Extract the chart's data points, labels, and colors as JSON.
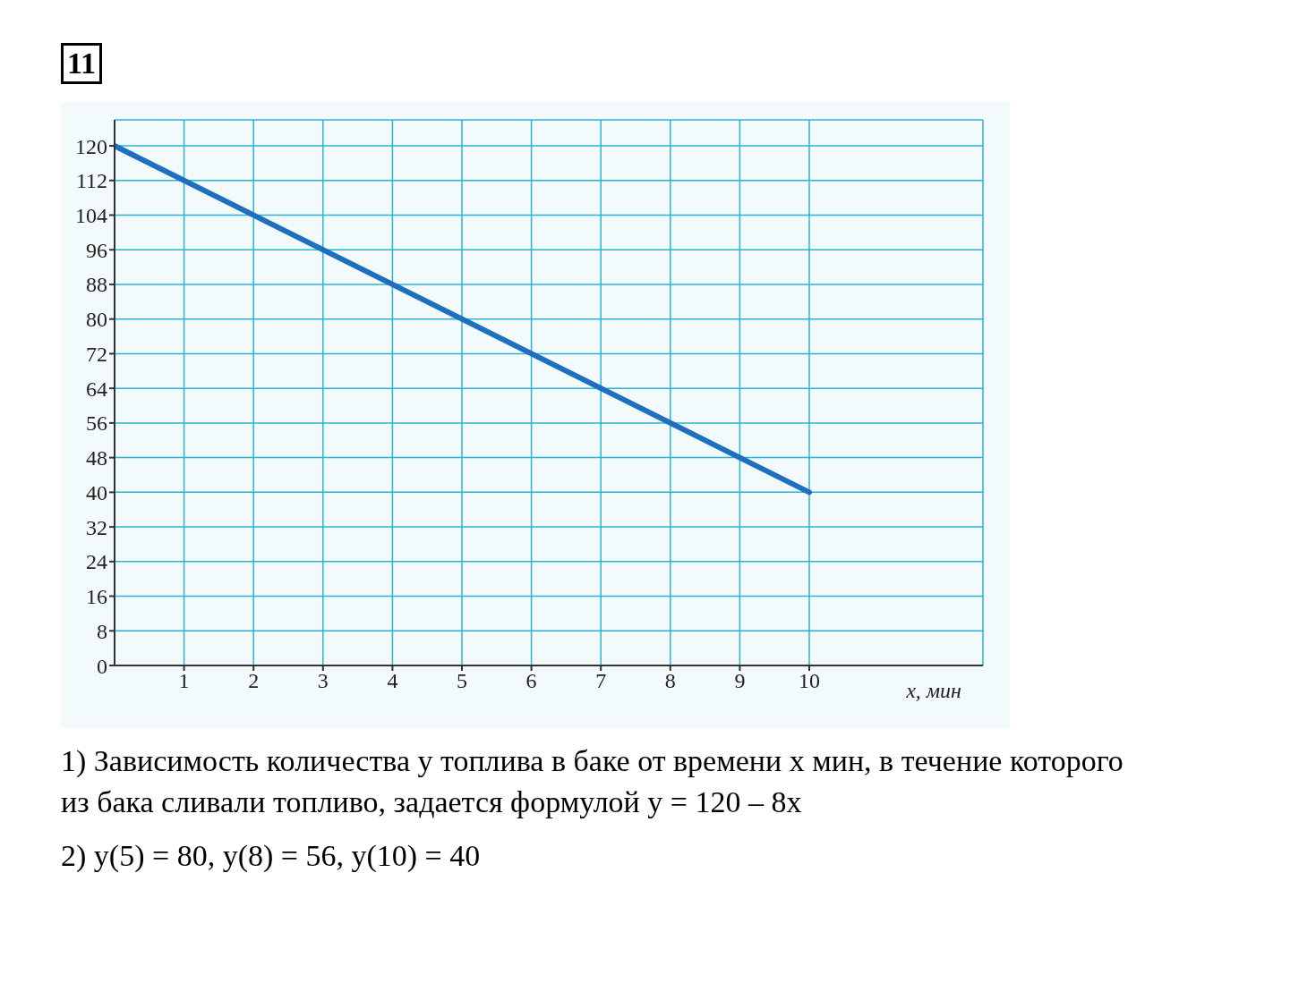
{
  "chart_data": {
    "type": "line",
    "xlabel": "x, мин",
    "x": [
      0,
      10
    ],
    "series": [
      {
        "color": "#1f6fbf",
        "values": [
          120,
          40
        ]
      }
    ],
    "xlim": [
      0,
      12.5
    ],
    "xticks": [
      1,
      2,
      3,
      4,
      5,
      6,
      7,
      8,
      9,
      10
    ],
    "ylim": [
      0,
      126
    ],
    "yticks": [
      0,
      8,
      16,
      24,
      32,
      40,
      48,
      56,
      64,
      72,
      80,
      88,
      96,
      104,
      112,
      120
    ],
    "grid": true,
    "marker": "none",
    "line_style": "solid",
    "annotations": [
      "11",
      "1) Зависимость количества y топлива в баке от времени x мин, в течение которого из бака сливали топливо, задается формулой y = 120 – 8x",
      "2) y(5) = 80, y(8) = 56, y(10) = 40"
    ]
  }
}
